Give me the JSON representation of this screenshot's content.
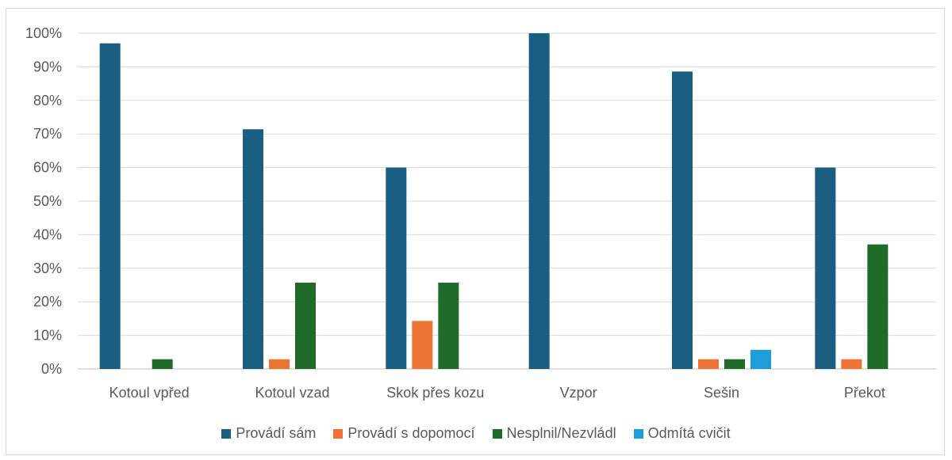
{
  "chart_data": {
    "type": "bar",
    "categories": [
      "Kotoul vpřed",
      "Kotoul vzad",
      "Skok přes kozu",
      "Vzpor",
      "Sešin",
      "Překot"
    ],
    "series": [
      {
        "name": "Provádí sám",
        "color": "#1a5f82",
        "values": [
          97,
          71.4,
          60,
          100,
          88.6,
          60
        ]
      },
      {
        "name": "Provádí s dopomocí",
        "color": "#ed7434",
        "values": [
          0,
          2.9,
          14.3,
          0,
          2.9,
          2.9
        ]
      },
      {
        "name": "Nesplnil/Nezvládl",
        "color": "#1e6b2a",
        "values": [
          2.9,
          25.7,
          25.7,
          0,
          2.9,
          37.1
        ]
      },
      {
        "name": "Odmítá cvičit",
        "color": "#1d9ed8",
        "values": [
          0,
          0,
          0,
          0,
          5.7,
          0
        ]
      }
    ],
    "y_ticks": [
      "0%",
      "10%",
      "20%",
      "30%",
      "40%",
      "50%",
      "60%",
      "70%",
      "80%",
      "90%",
      "100%"
    ],
    "ylim": [
      0,
      100
    ],
    "grid": true,
    "legend_position": "bottom"
  }
}
